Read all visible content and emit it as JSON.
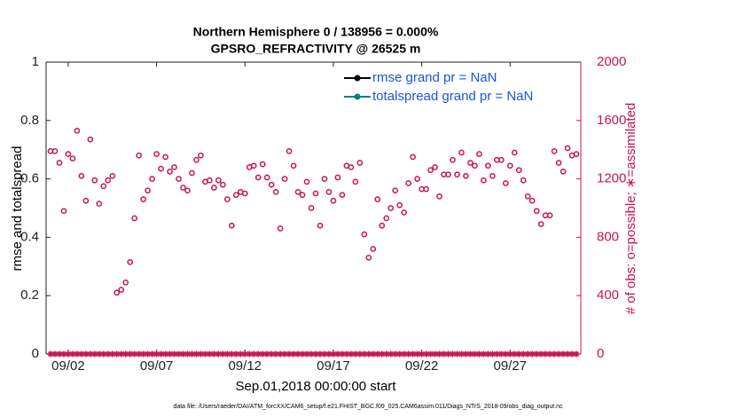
{
  "chart_data": {
    "type": "scatter",
    "title": "Northern Hemisphere 0 / 138956 = 0.000%",
    "subtitle": "GPSRO_REFRACTIVITY @ 26525 m",
    "xlabel": "Sep.01,2018 00:00:00 start",
    "ylabel": "rmse and totalspread",
    "y2label": "# of obs: o=possible; ∗=assimilated",
    "footnote": "data file: /Users/raeder/DAI/ATM_forcXX/CAM6_setup/f.e21.FHIST_BGC.f09_025.CAM6assim.011/Diags_NTrS_2018-09/obs_diag_output.nc",
    "legend": [
      {
        "name": "rmse grand pr = NaN",
        "color": "#000000"
      },
      {
        "name": "totalspread grand pr = NaN",
        "color": "#008080"
      }
    ],
    "legend_position": "upper right",
    "legend_text_color": "#1a55e0",
    "xlim": [
      0.75,
      31.0
    ],
    "xticks": [
      {
        "value": 2,
        "label": "09/02"
      },
      {
        "value": 7,
        "label": "09/07"
      },
      {
        "value": 12,
        "label": "09/12"
      },
      {
        "value": 17,
        "label": "09/17"
      },
      {
        "value": 22,
        "label": "09/22"
      },
      {
        "value": 27,
        "label": "09/27"
      }
    ],
    "ylim": [
      0,
      1
    ],
    "yticks": [
      0,
      0.2,
      0.4,
      0.6,
      0.8,
      1
    ],
    "y2lim": [
      0,
      2000
    ],
    "y2ticks": [
      0,
      400,
      800,
      1200,
      1600,
      2000
    ],
    "y2color": "#c8144f",
    "x": [
      1,
      1.25,
      1.5,
      1.75,
      2,
      2.25,
      2.5,
      2.75,
      3,
      3.25,
      3.5,
      3.75,
      4,
      4.25,
      4.5,
      4.75,
      5,
      5.25,
      5.5,
      5.75,
      6,
      6.25,
      6.5,
      6.75,
      7,
      7.25,
      7.5,
      7.75,
      8,
      8.25,
      8.5,
      8.75,
      9,
      9.25,
      9.5,
      9.75,
      10,
      10.25,
      10.5,
      10.75,
      11,
      11.25,
      11.5,
      11.75,
      12,
      12.25,
      12.5,
      12.75,
      13,
      13.25,
      13.5,
      13.75,
      14,
      14.25,
      14.5,
      14.75,
      15,
      15.25,
      15.5,
      15.75,
      16,
      16.25,
      16.5,
      16.75,
      17,
      17.25,
      17.5,
      17.75,
      18,
      18.25,
      18.5,
      18.75,
      19,
      19.25,
      19.5,
      19.75,
      20,
      20.25,
      20.5,
      20.75,
      21,
      21.25,
      21.5,
      21.75,
      22,
      22.25,
      22.5,
      22.75,
      23,
      23.25,
      23.5,
      23.75,
      24,
      24.25,
      24.5,
      24.75,
      25,
      25.25,
      25.5,
      25.75,
      26,
      26.25,
      26.5,
      26.75,
      27,
      27.25,
      27.5,
      27.75,
      28,
      28.25,
      28.5,
      28.75,
      29,
      29.25,
      29.5,
      29.75,
      30,
      30.25,
      30.5,
      30.75
    ],
    "series": [
      {
        "name": "possible",
        "marker": "circle",
        "axis": "y2",
        "color": "#c8144f",
        "values": [
          1390,
          1390,
          1310,
          980,
          1370,
          1340,
          1530,
          1220,
          1050,
          1470,
          1190,
          1030,
          1150,
          1190,
          1220,
          420,
          440,
          490,
          630,
          930,
          1360,
          1060,
          1120,
          1200,
          1370,
          1270,
          1350,
          1250,
          1280,
          1200,
          1140,
          1120,
          1240,
          1330,
          1360,
          1180,
          1190,
          1140,
          1190,
          1160,
          1060,
          880,
          1090,
          1110,
          1100,
          1280,
          1290,
          1210,
          1300,
          1210,
          1160,
          1110,
          860,
          1200,
          1390,
          1290,
          1110,
          1090,
          1180,
          1000,
          1100,
          880,
          1200,
          1110,
          1050,
          1210,
          1090,
          1290,
          1280,
          1180,
          1310,
          820,
          660,
          720,
          1060,
          880,
          930,
          1000,
          1120,
          1020,
          970,
          1170,
          1350,
          1200,
          1130,
          1130,
          1260,
          1280,
          1080,
          1230,
          1230,
          1330,
          1230,
          1380,
          1220,
          1310,
          1290,
          1370,
          1190,
          1290,
          1220,
          1330,
          1330,
          1170,
          1290,
          1380,
          1260,
          1190,
          1080,
          1050,
          980,
          890,
          950,
          950,
          1390,
          1310,
          1250,
          1410,
          1360,
          1370
        ]
      },
      {
        "name": "assimilated",
        "marker": "asterisk",
        "axis": "y2",
        "color": "#c8144f",
        "values": [
          0,
          0,
          0,
          0,
          0,
          0,
          0,
          0,
          0,
          0,
          0,
          0,
          0,
          0,
          0,
          0,
          0,
          0,
          0,
          0,
          0,
          0,
          0,
          0,
          0,
          0,
          0,
          0,
          0,
          0,
          0,
          0,
          0,
          0,
          0,
          0,
          0,
          0,
          0,
          0,
          0,
          0,
          0,
          0,
          0,
          0,
          0,
          0,
          0,
          0,
          0,
          0,
          0,
          0,
          0,
          0,
          0,
          0,
          0,
          0,
          0,
          0,
          0,
          0,
          0,
          0,
          0,
          0,
          0,
          0,
          0,
          0,
          0,
          0,
          0,
          0,
          0,
          0,
          0,
          0,
          0,
          0,
          0,
          0,
          0,
          0,
          0,
          0,
          0,
          0,
          0,
          0,
          0,
          0,
          0,
          0,
          0,
          0,
          0,
          0,
          0,
          0,
          0,
          0,
          0,
          0,
          0,
          0,
          0,
          0,
          0,
          0,
          0,
          0,
          0,
          0,
          0,
          0,
          0,
          0
        ]
      }
    ]
  }
}
